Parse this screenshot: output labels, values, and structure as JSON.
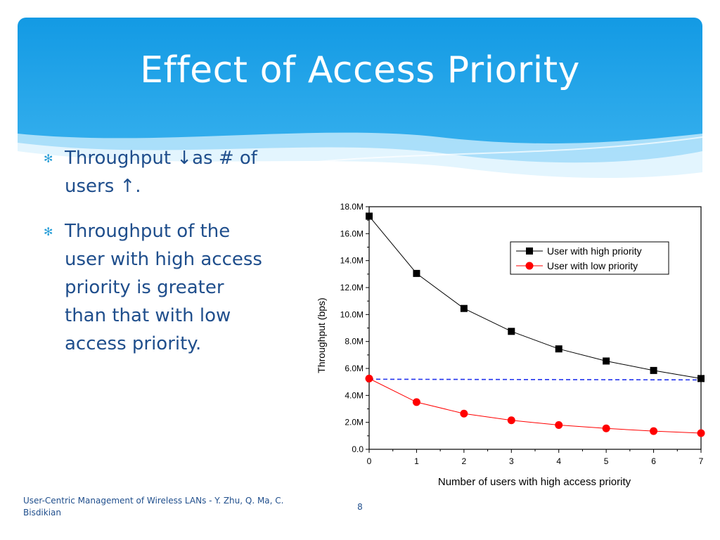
{
  "slide": {
    "title": "Effect of Access Priority",
    "bullets": [
      {
        "text": "Throughput ↓as # of users ↑."
      },
      {
        "text": "Throughput of the user with high access priority is greater than that with low access priority."
      }
    ],
    "footer": "User-Centric Management of Wireless LANs - Y. Zhu, Q. Ma, C. Bisdikian",
    "page_number": "8",
    "colors": {
      "header_blue": "#1e9be6",
      "text_blue": "#1f4e8c"
    }
  },
  "chart_data": {
    "type": "line",
    "xlabel": "Number of users with high access priority",
    "ylabel": "Throughput (bps)",
    "x": [
      0,
      1,
      2,
      3,
      4,
      5,
      6,
      7
    ],
    "xlim": [
      0,
      7
    ],
    "ylim": [
      0,
      18000000
    ],
    "xticks": [
      "0",
      "1",
      "2",
      "3",
      "4",
      "5",
      "6",
      "7"
    ],
    "yticks": [
      "0.0",
      "2.0M",
      "4.0M",
      "6.0M",
      "8.0M",
      "10.0M",
      "12.0M",
      "14.0M",
      "16.0M",
      "18.0M"
    ],
    "legend_position": "top-right",
    "grid": false,
    "series": [
      {
        "name": "User with high priority",
        "marker": "square",
        "color": "#000000",
        "values": [
          17300000,
          13050000,
          10450000,
          8750000,
          7450000,
          6550000,
          5850000,
          5250000
        ]
      },
      {
        "name": "User with low priority",
        "marker": "circle",
        "color": "#ff0000",
        "values": [
          5250000,
          3500000,
          2650000,
          2150000,
          1800000,
          1550000,
          1350000,
          1200000
        ]
      }
    ],
    "reference_line": {
      "style": "dashed",
      "color": "#2233ee",
      "values": [
        5200000,
        5150000
      ]
    }
  }
}
